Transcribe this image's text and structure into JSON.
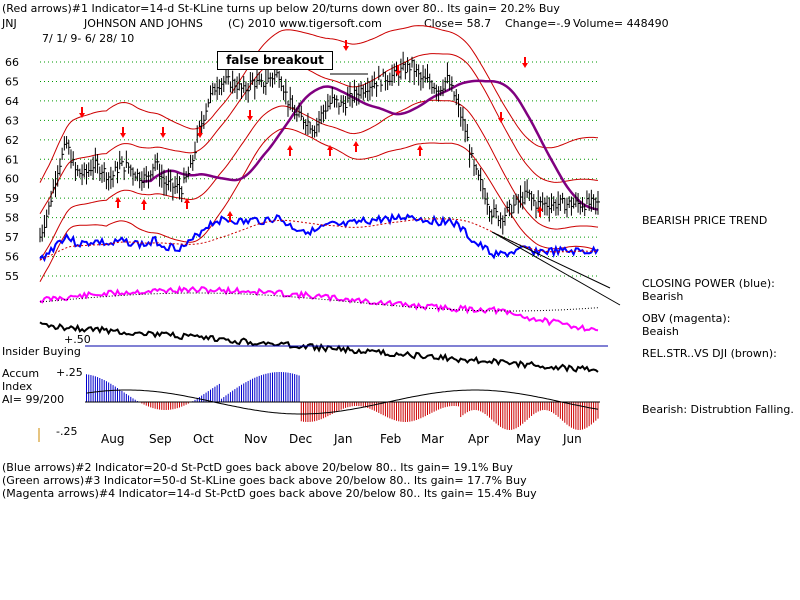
{
  "header": {
    "line1": "(Red arrows)#1 Indicator=14-d St-KLine turns up below 20/turns down over 80.. Its gain= 20.2% Buy",
    "ticker": "JNJ",
    "company": "JOHNSON AND JOHNS",
    "copyright": "(C) 2010 www.tigersoft.com",
    "close": "Close=  58.7",
    "change": "Change=-.9",
    "volume": "Volume= 448490",
    "date_range": "7/ 1/ 9- 6/ 28/ 10"
  },
  "annotation": {
    "false_breakout": "false breakout"
  },
  "right_panel": {
    "trend": "BEARISH PRICE TREND",
    "cp_label": "CLOSING POWER (blue):",
    "cp_value": "Bearish",
    "obv_label": "OBV (magenta):",
    "obv_value": "Beaish",
    "relstr_label": "REL.STR..VS DJI (brown):",
    "accum_note": "Bearish: Distrubtion Falling."
  },
  "left_labels": {
    "insider": "Insider Buying",
    "accum1": "Accum",
    "accum2": "Index",
    "ai": "AI= 99/200",
    "plus50": "+.50",
    "plus25": "+.25",
    "minus25": "-.25"
  },
  "footer": {
    "line1": "(Blue arrows)#2 Indicator=20-d St-PctD goes back above 20/below 80.. Its gain= 19.1% Buy",
    "line2": "(Green arrows)#3 Indicator=50-d St-KLine goes back above 20/below 80.. Its gain= 17.7% Buy",
    "line3": "(Magenta arrows)#4 Indicator=14-d St-PctD goes back above 20/below 80.. Its gain= 15.4% Buy"
  },
  "colors": {
    "price_bars": "#000000",
    "closing_power": "#0000ff",
    "obv": "#ff00ff",
    "ma": "#800080",
    "bands": "#cc0000",
    "arrows": "#ff0000",
    "accum_pos": "#0000cc",
    "accum_neg": "#cc0000",
    "grid": "#009900"
  },
  "chart_data": {
    "type": "line",
    "y_ticks": [
      55,
      56,
      57,
      58,
      59,
      60,
      61,
      62,
      63,
      64,
      65,
      66
    ],
    "ylim": [
      54.5,
      66.5
    ],
    "month_labels": [
      "Aug",
      "Sep",
      "Oct",
      "Nov",
      "Dec",
      "Jan",
      "Feb",
      "Mar",
      "Apr",
      "May",
      "Jun"
    ],
    "grid": true,
    "series": [
      {
        "kind": "price_close",
        "x": [
          0,
          4,
          8,
          12,
          16,
          20,
          24,
          28,
          32,
          36,
          40,
          44,
          48,
          52,
          56,
          60,
          64,
          68,
          72,
          76,
          80,
          84,
          88,
          92,
          96,
          100,
          104,
          108,
          112,
          116,
          120,
          124,
          128,
          132,
          136,
          140,
          144,
          148,
          152,
          156,
          160,
          164,
          168,
          172,
          176,
          180,
          184,
          188,
          192,
          196,
          200,
          204,
          208,
          212,
          216,
          220,
          224,
          228,
          232,
          236,
          240,
          244,
          248,
          252
        ],
        "values": [
          57.0,
          58.5,
          60.5,
          61.8,
          60.4,
          60.2,
          60.7,
          60.5,
          60.0,
          60.7,
          60.6,
          60.2,
          60.0,
          60.9,
          59.8,
          59.6,
          59.5,
          60.5,
          62.5,
          64.0,
          64.9,
          65.0,
          64.9,
          64.5,
          65.0,
          64.8,
          65.2,
          65.4,
          64.0,
          63.2,
          63.0,
          62.6,
          63.5,
          64.0,
          63.8,
          64.1,
          64.5,
          64.8,
          65.0,
          65.2,
          65.3,
          65.6,
          65.8,
          65.1,
          65.0,
          64.6,
          65.1,
          64.0,
          62.5,
          60.5,
          59.5,
          58.3,
          58.0,
          58.4,
          58.8,
          59.2,
          58.7,
          58.7,
          58.7,
          58.7,
          58.7,
          58.7,
          58.7,
          58.7
        ]
      }
    ]
  }
}
